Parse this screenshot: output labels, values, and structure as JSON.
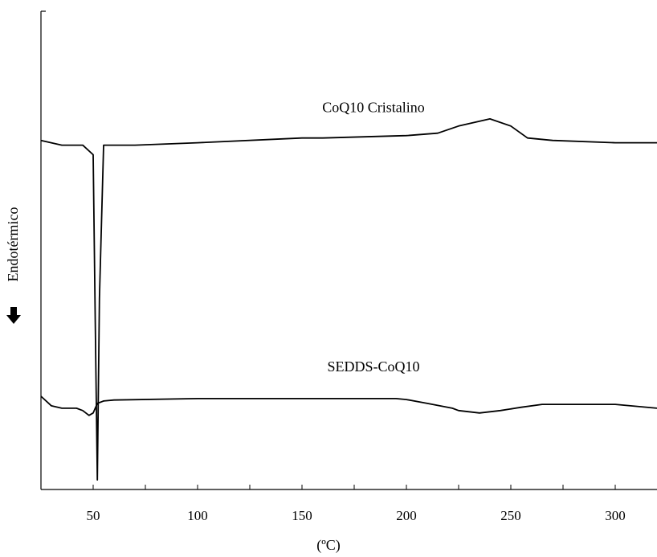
{
  "chart_data": {
    "type": "line",
    "title": "",
    "xlabel": "(ºC)",
    "ylabel": "Endotérmico",
    "ylabel_arrow": "down",
    "xlim": [
      25,
      320
    ],
    "xticks": [
      50,
      100,
      150,
      200,
      250,
      300
    ],
    "y_ticks_shown": false,
    "grid": false,
    "series": [
      {
        "name": "CoQ10 Cristalino",
        "x": [
          25,
          35,
          45,
          50,
          51,
          52,
          53,
          55,
          70,
          100,
          150,
          160,
          200,
          215,
          225,
          240,
          250,
          258,
          270,
          300,
          320
        ],
        "y": [
          0.73,
          0.72,
          0.72,
          0.7,
          0.35,
          0.02,
          0.4,
          0.72,
          0.72,
          0.725,
          0.735,
          0.735,
          0.74,
          0.745,
          0.76,
          0.775,
          0.76,
          0.735,
          0.73,
          0.725,
          0.725
        ]
      },
      {
        "name": "SEDDS-CoQ10",
        "x": [
          25,
          30,
          35,
          42,
          45,
          48,
          50,
          52,
          55,
          60,
          100,
          150,
          195,
          200,
          210,
          222,
          225,
          235,
          245,
          255,
          265,
          285,
          300,
          310,
          320
        ],
        "y": [
          0.195,
          0.175,
          0.17,
          0.17,
          0.165,
          0.155,
          0.16,
          0.18,
          0.185,
          0.187,
          0.19,
          0.19,
          0.19,
          0.188,
          0.18,
          0.17,
          0.165,
          0.16,
          0.165,
          0.172,
          0.178,
          0.178,
          0.178,
          0.174,
          0.17
        ]
      }
    ]
  }
}
